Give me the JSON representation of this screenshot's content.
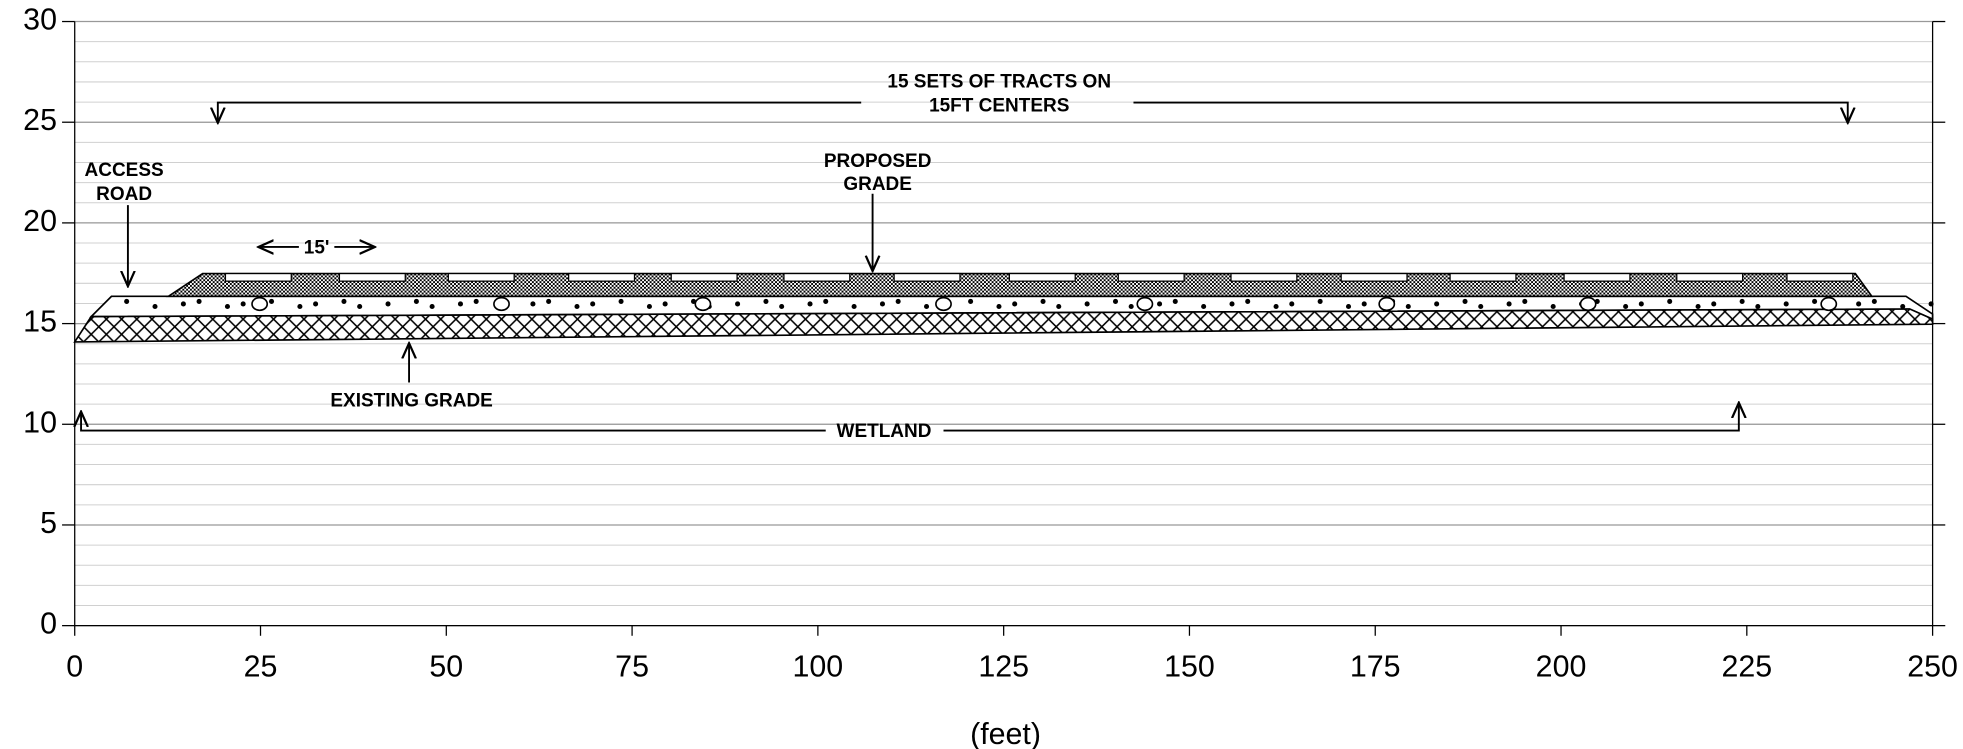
{
  "axes": {
    "xlim": [
      0,
      250
    ],
    "xticks": [
      0,
      25,
      50,
      75,
      100,
      125,
      150,
      175,
      200,
      225,
      250
    ],
    "ylim": [
      0,
      30
    ],
    "yticks": [
      0,
      5,
      10,
      15,
      20,
      25,
      30
    ],
    "x_label": "(feet)",
    "grid": true
  },
  "annotations": {
    "tracts": [
      "15 SETS OF TRACTS ON",
      "15FT CENTERS"
    ],
    "access_road": [
      "ACCESS",
      "ROAD"
    ],
    "proposed_grade": [
      "PROPOSED",
      "GRADE"
    ],
    "spacing": "15'",
    "existing_grade": "EXISTING GRADE",
    "wetland": "WETLAND"
  }
}
